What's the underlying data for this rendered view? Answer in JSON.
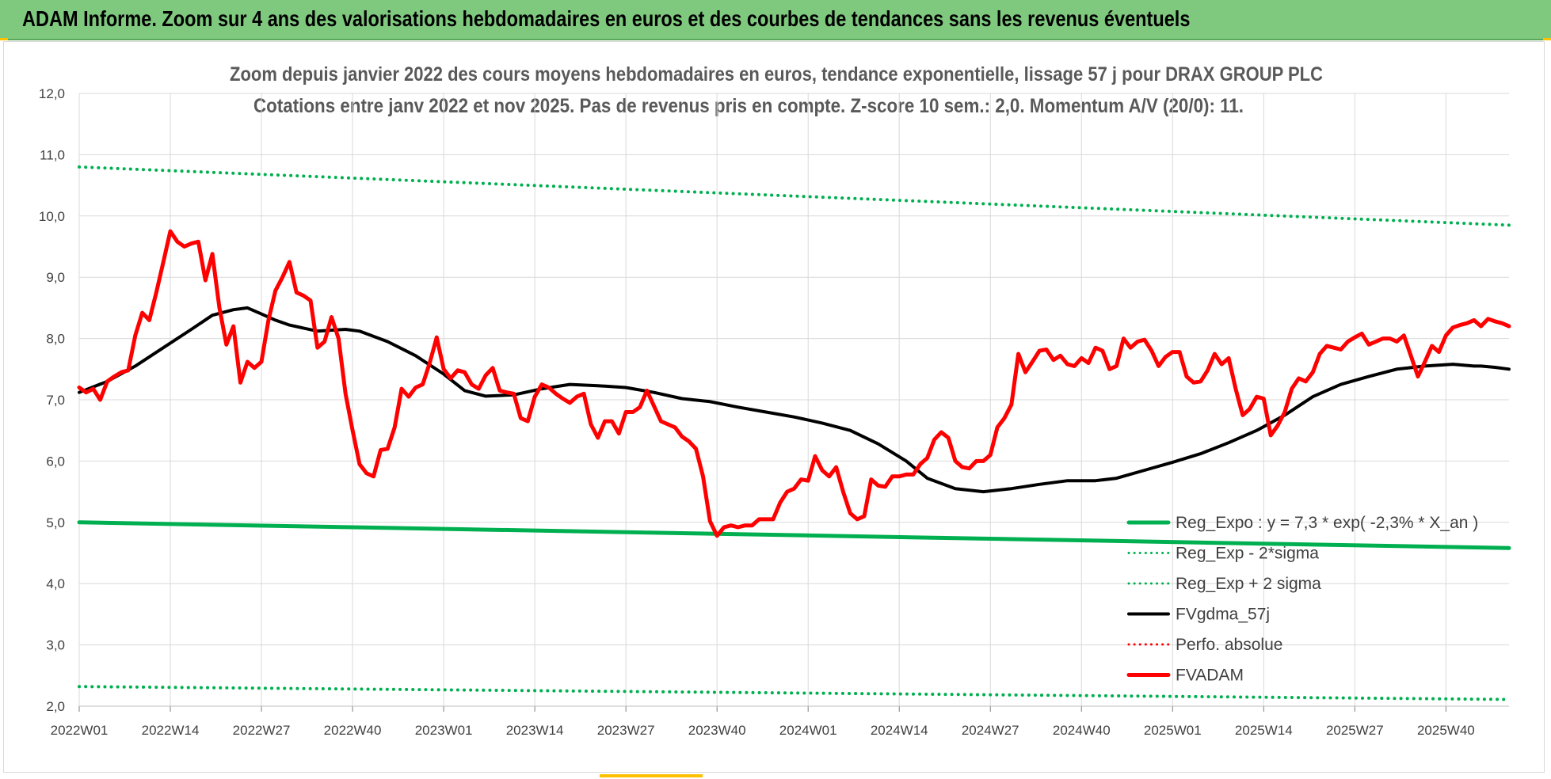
{
  "banner": {
    "title": "ADAM Informe. Zoom sur 4 ans des valorisations hebdomadaires en euros et des courbes de tendances sans les revenus éventuels"
  },
  "colors": {
    "banner": "#7fc97f",
    "trend": "#00b050",
    "sigma": "#00b050",
    "smooth": "#000000",
    "price": "#ff0000",
    "perf": "#ff0000",
    "grid": "#d9d9d9"
  },
  "chart_data": {
    "type": "line",
    "title": "Zoom depuis janvier 2022 des cours moyens hebdomadaires en euros, tendance exponentielle, lissage 57 j pour DRAX GROUP PLC",
    "subtitle": "Cotations entre janv 2022 et nov 2025. Pas de revenus pris en compte. Z-score 10 sem.: 2,0. Momentum A/V (20/0): 11.",
    "ylim": [
      2.0,
      12.0
    ],
    "y_ticks": [
      "2,0",
      "3,0",
      "4,0",
      "5,0",
      "6,0",
      "7,0",
      "8,0",
      "9,0",
      "10,0",
      "11,0",
      "12,0"
    ],
    "x_ticks": [
      "2022W01",
      "2022W14",
      "2022W27",
      "2022W40",
      "2023W01",
      "2023W14",
      "2023W27",
      "2023W40",
      "2024W01",
      "2024W14",
      "2024W27",
      "2024W40",
      "2025W01",
      "2025W14",
      "2025W27",
      "2025W40"
    ],
    "x_count": 205,
    "grid": true,
    "legend_position": "lower-right",
    "series": [
      {
        "name": "Reg_Expo : y = 7,3 * exp( -2,3% * X_an )",
        "style": "solid-thick",
        "color": "#00b050",
        "points": [
          [
            0,
            5.0
          ],
          [
            204,
            4.58
          ]
        ]
      },
      {
        "name": "Reg_Exp - 2*sigma",
        "style": "dotted",
        "color": "#00b050",
        "points": [
          [
            0,
            2.32
          ],
          [
            204,
            2.11
          ]
        ]
      },
      {
        "name": "Reg_Exp + 2 sigma",
        "style": "dotted",
        "color": "#00b050",
        "points": [
          [
            0,
            10.8
          ],
          [
            204,
            9.85
          ]
        ]
      },
      {
        "name": "FVgdma_57j",
        "style": "solid",
        "color": "#000000",
        "points": [
          [
            0,
            7.12
          ],
          [
            4,
            7.3
          ],
          [
            8,
            7.55
          ],
          [
            12,
            7.85
          ],
          [
            16,
            8.15
          ],
          [
            19,
            8.38
          ],
          [
            22,
            8.47
          ],
          [
            24,
            8.5
          ],
          [
            26,
            8.4
          ],
          [
            28,
            8.3
          ],
          [
            30,
            8.22
          ],
          [
            34,
            8.12
          ],
          [
            38,
            8.15
          ],
          [
            40,
            8.12
          ],
          [
            44,
            7.95
          ],
          [
            48,
            7.72
          ],
          [
            52,
            7.42
          ],
          [
            55,
            7.15
          ],
          [
            58,
            7.06
          ],
          [
            62,
            7.08
          ],
          [
            66,
            7.18
          ],
          [
            70,
            7.25
          ],
          [
            74,
            7.23
          ],
          [
            78,
            7.2
          ],
          [
            82,
            7.12
          ],
          [
            86,
            7.02
          ],
          [
            90,
            6.97
          ],
          [
            94,
            6.88
          ],
          [
            98,
            6.8
          ],
          [
            102,
            6.72
          ],
          [
            106,
            6.62
          ],
          [
            110,
            6.5
          ],
          [
            114,
            6.28
          ],
          [
            118,
            6.0
          ],
          [
            121,
            5.72
          ],
          [
            125,
            5.55
          ],
          [
            129,
            5.5
          ],
          [
            133,
            5.55
          ],
          [
            137,
            5.62
          ],
          [
            141,
            5.68
          ],
          [
            145,
            5.68
          ],
          [
            148,
            5.72
          ],
          [
            152,
            5.85
          ],
          [
            156,
            5.98
          ],
          [
            160,
            6.12
          ],
          [
            164,
            6.3
          ],
          [
            168,
            6.5
          ],
          [
            172,
            6.75
          ],
          [
            176,
            7.05
          ],
          [
            180,
            7.25
          ],
          [
            184,
            7.38
          ],
          [
            188,
            7.5
          ],
          [
            192,
            7.55
          ],
          [
            196,
            7.58
          ],
          [
            199,
            7.55
          ],
          [
            200,
            7.55
          ],
          [
            202,
            7.53
          ],
          [
            204,
            7.5
          ]
        ]
      },
      {
        "name": "Perfo. absolue",
        "style": "dotted",
        "color": "#ff0000",
        "points": []
      },
      {
        "name": "FVADAM",
        "style": "solid-thick",
        "color": "#ff0000",
        "points": [
          [
            0,
            7.2
          ],
          [
            1,
            7.12
          ],
          [
            2,
            7.18
          ],
          [
            3,
            7.0
          ],
          [
            4,
            7.3
          ],
          [
            5,
            7.38
          ],
          [
            6,
            7.45
          ],
          [
            7,
            7.48
          ],
          [
            8,
            8.05
          ],
          [
            9,
            8.42
          ],
          [
            10,
            8.3
          ],
          [
            11,
            8.75
          ],
          [
            12,
            9.25
          ],
          [
            13,
            9.75
          ],
          [
            14,
            9.58
          ],
          [
            15,
            9.5
          ],
          [
            16,
            9.55
          ],
          [
            17,
            9.58
          ],
          [
            18,
            8.95
          ],
          [
            19,
            9.38
          ],
          [
            20,
            8.5
          ],
          [
            21,
            7.9
          ],
          [
            22,
            8.2
          ],
          [
            23,
            7.28
          ],
          [
            24,
            7.62
          ],
          [
            25,
            7.52
          ],
          [
            26,
            7.62
          ],
          [
            27,
            8.3
          ],
          [
            28,
            8.78
          ],
          [
            29,
            9.0
          ],
          [
            30,
            9.25
          ],
          [
            31,
            8.75
          ],
          [
            32,
            8.7
          ],
          [
            33,
            8.62
          ],
          [
            34,
            7.85
          ],
          [
            35,
            7.95
          ],
          [
            36,
            8.35
          ],
          [
            37,
            8.0
          ],
          [
            38,
            7.1
          ],
          [
            39,
            6.5
          ],
          [
            40,
            5.95
          ],
          [
            41,
            5.8
          ],
          [
            42,
            5.75
          ],
          [
            43,
            6.18
          ],
          [
            44,
            6.2
          ],
          [
            45,
            6.55
          ],
          [
            46,
            7.18
          ],
          [
            47,
            7.05
          ],
          [
            48,
            7.2
          ],
          [
            49,
            7.25
          ],
          [
            50,
            7.6
          ],
          [
            51,
            8.02
          ],
          [
            52,
            7.5
          ],
          [
            53,
            7.35
          ],
          [
            54,
            7.48
          ],
          [
            55,
            7.45
          ],
          [
            56,
            7.25
          ],
          [
            57,
            7.18
          ],
          [
            58,
            7.4
          ],
          [
            59,
            7.52
          ],
          [
            60,
            7.15
          ],
          [
            61,
            7.12
          ],
          [
            62,
            7.1
          ],
          [
            63,
            6.7
          ],
          [
            64,
            6.65
          ],
          [
            65,
            7.05
          ],
          [
            66,
            7.25
          ],
          [
            67,
            7.2
          ],
          [
            68,
            7.1
          ],
          [
            69,
            7.02
          ],
          [
            70,
            6.95
          ],
          [
            71,
            7.05
          ],
          [
            72,
            7.1
          ],
          [
            73,
            6.6
          ],
          [
            74,
            6.38
          ],
          [
            75,
            6.65
          ],
          [
            76,
            6.65
          ],
          [
            77,
            6.45
          ],
          [
            78,
            6.8
          ],
          [
            79,
            6.8
          ],
          [
            80,
            6.88
          ],
          [
            81,
            7.15
          ],
          [
            82,
            6.9
          ],
          [
            83,
            6.65
          ],
          [
            84,
            6.6
          ],
          [
            85,
            6.55
          ],
          [
            86,
            6.4
          ],
          [
            87,
            6.32
          ],
          [
            88,
            6.2
          ],
          [
            89,
            5.75
          ],
          [
            90,
            5.02
          ],
          [
            91,
            4.78
          ],
          [
            92,
            4.92
          ],
          [
            93,
            4.95
          ],
          [
            94,
            4.92
          ],
          [
            95,
            4.95
          ],
          [
            96,
            4.95
          ],
          [
            97,
            5.05
          ],
          [
            98,
            5.05
          ],
          [
            99,
            5.05
          ],
          [
            100,
            5.32
          ],
          [
            101,
            5.5
          ],
          [
            102,
            5.55
          ],
          [
            103,
            5.7
          ],
          [
            104,
            5.68
          ],
          [
            105,
            6.08
          ],
          [
            106,
            5.85
          ],
          [
            107,
            5.75
          ],
          [
            108,
            5.9
          ],
          [
            109,
            5.5
          ],
          [
            110,
            5.15
          ],
          [
            111,
            5.05
          ],
          [
            112,
            5.1
          ],
          [
            113,
            5.7
          ],
          [
            114,
            5.6
          ],
          [
            115,
            5.58
          ],
          [
            116,
            5.75
          ],
          [
            117,
            5.75
          ],
          [
            118,
            5.78
          ],
          [
            119,
            5.78
          ],
          [
            120,
            5.95
          ],
          [
            121,
            6.05
          ],
          [
            122,
            6.35
          ],
          [
            123,
            6.47
          ],
          [
            124,
            6.38
          ],
          [
            125,
            6.0
          ],
          [
            126,
            5.9
          ],
          [
            127,
            5.88
          ],
          [
            128,
            6.0
          ],
          [
            129,
            6.0
          ],
          [
            130,
            6.1
          ],
          [
            131,
            6.55
          ],
          [
            132,
            6.7
          ],
          [
            133,
            6.92
          ],
          [
            134,
            7.75
          ],
          [
            135,
            7.45
          ],
          [
            136,
            7.62
          ],
          [
            137,
            7.8
          ],
          [
            138,
            7.82
          ],
          [
            139,
            7.65
          ],
          [
            140,
            7.72
          ],
          [
            141,
            7.58
          ],
          [
            142,
            7.55
          ],
          [
            143,
            7.68
          ],
          [
            144,
            7.6
          ],
          [
            145,
            7.85
          ],
          [
            146,
            7.8
          ],
          [
            147,
            7.5
          ],
          [
            148,
            7.55
          ],
          [
            149,
            8.0
          ],
          [
            150,
            7.85
          ],
          [
            151,
            7.95
          ],
          [
            152,
            7.98
          ],
          [
            153,
            7.8
          ],
          [
            154,
            7.55
          ],
          [
            155,
            7.7
          ],
          [
            156,
            7.78
          ],
          [
            157,
            7.78
          ],
          [
            158,
            7.38
          ],
          [
            159,
            7.28
          ],
          [
            160,
            7.3
          ],
          [
            161,
            7.48
          ],
          [
            162,
            7.75
          ],
          [
            163,
            7.58
          ],
          [
            164,
            7.68
          ],
          [
            165,
            7.18
          ],
          [
            166,
            6.75
          ],
          [
            167,
            6.85
          ],
          [
            168,
            7.05
          ],
          [
            169,
            7.02
          ],
          [
            170,
            6.42
          ],
          [
            171,
            6.58
          ],
          [
            172,
            6.8
          ],
          [
            173,
            7.18
          ],
          [
            174,
            7.35
          ],
          [
            175,
            7.3
          ],
          [
            176,
            7.45
          ],
          [
            177,
            7.75
          ],
          [
            178,
            7.88
          ],
          [
            179,
            7.85
          ],
          [
            180,
            7.82
          ],
          [
            181,
            7.95
          ],
          [
            182,
            8.02
          ],
          [
            183,
            8.08
          ],
          [
            184,
            7.9
          ],
          [
            185,
            7.95
          ],
          [
            186,
            8.0
          ],
          [
            187,
            8.0
          ],
          [
            188,
            7.95
          ],
          [
            189,
            8.05
          ],
          [
            190,
            7.72
          ],
          [
            191,
            7.38
          ],
          [
            192,
            7.62
          ],
          [
            193,
            7.88
          ],
          [
            194,
            7.78
          ],
          [
            195,
            8.05
          ],
          [
            196,
            8.18
          ],
          [
            197,
            8.22
          ],
          [
            198,
            8.25
          ],
          [
            199,
            8.3
          ],
          [
            200,
            8.2
          ],
          [
            201,
            8.32
          ],
          [
            202,
            8.28
          ],
          [
            203,
            8.25
          ],
          [
            204,
            8.2
          ]
        ]
      }
    ]
  }
}
